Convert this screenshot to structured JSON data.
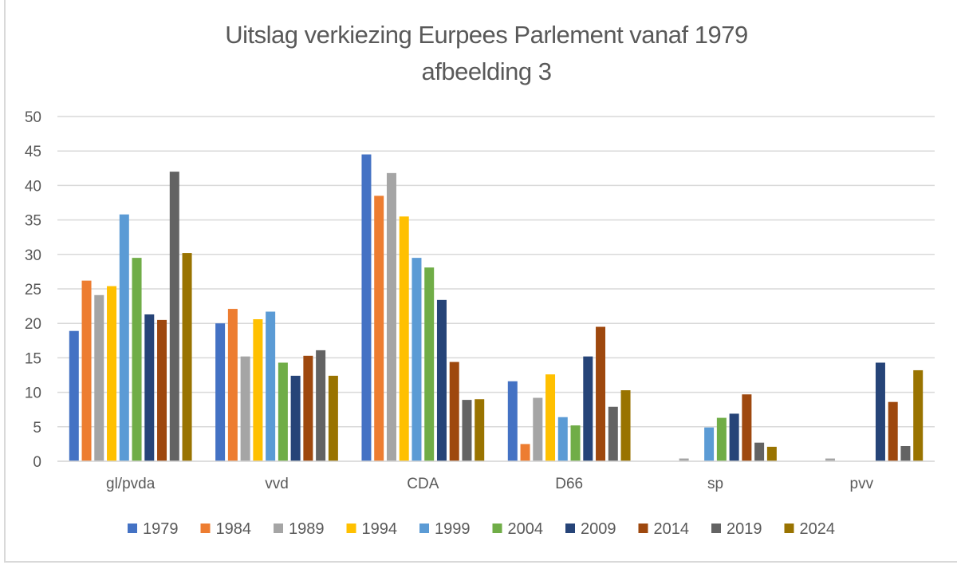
{
  "chart_data": {
    "type": "bar",
    "title": "Uitslag verkiezing Eurpees Parlement vanaf 1979",
    "subtitle": "afbeelding 3",
    "xlabel": "",
    "ylabel": "",
    "ylim": [
      0,
      50
    ],
    "yticks": [
      0,
      5,
      10,
      15,
      20,
      25,
      30,
      35,
      40,
      45,
      50
    ],
    "grid": true,
    "legend_position": "bottom",
    "categories": [
      "gl/pvda",
      "vvd",
      "CDA",
      "D66",
      "sp",
      "pvv"
    ],
    "series": [
      {
        "name": "1979",
        "color": "#4472c4",
        "values": [
          18.9,
          20.0,
          44.5,
          11.6,
          0,
          0
        ]
      },
      {
        "name": "1984",
        "color": "#ed7d31",
        "values": [
          26.2,
          22.1,
          38.5,
          2.5,
          0,
          0
        ]
      },
      {
        "name": "1989",
        "color": "#a5a5a5",
        "values": [
          24.1,
          15.2,
          41.8,
          9.2,
          0.4,
          0.4
        ]
      },
      {
        "name": "1994",
        "color": "#ffc000",
        "values": [
          25.4,
          20.6,
          35.5,
          12.6,
          0,
          0
        ]
      },
      {
        "name": "1999",
        "color": "#5b9bd5",
        "values": [
          35.8,
          21.7,
          29.5,
          6.4,
          4.9,
          0
        ]
      },
      {
        "name": "2004",
        "color": "#70ad47",
        "values": [
          29.5,
          14.3,
          28.1,
          5.2,
          6.3,
          0
        ]
      },
      {
        "name": "2009",
        "color": "#264478",
        "values": [
          21.3,
          12.4,
          23.4,
          15.2,
          6.9,
          14.3
        ]
      },
      {
        "name": "2014",
        "color": "#9e480e",
        "values": [
          20.5,
          15.3,
          14.4,
          19.5,
          9.7,
          8.6
        ]
      },
      {
        "name": "2019",
        "color": "#636363",
        "values": [
          42.0,
          16.1,
          8.9,
          7.9,
          2.7,
          2.2
        ]
      },
      {
        "name": "2024",
        "color": "#997300",
        "values": [
          30.2,
          12.4,
          9.0,
          10.3,
          2.1,
          13.2
        ]
      }
    ]
  }
}
